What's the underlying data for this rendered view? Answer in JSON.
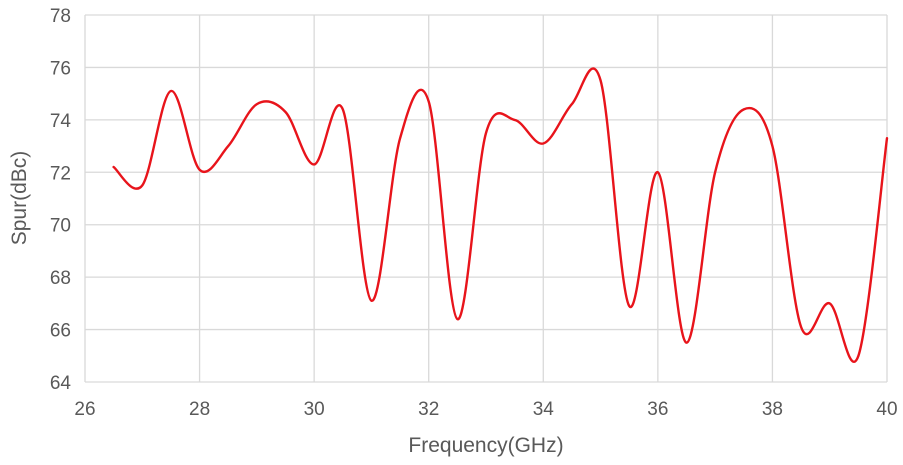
{
  "chart_data": {
    "type": "line",
    "title": "",
    "xlabel": "Frequency(GHz)",
    "ylabel": "Spur(dBc)",
    "xlim": [
      26,
      40
    ],
    "ylim": [
      64,
      78
    ],
    "xticks": [
      26,
      28,
      30,
      32,
      34,
      36,
      38,
      40
    ],
    "yticks": [
      64,
      66,
      68,
      70,
      72,
      74,
      76,
      78
    ],
    "grid": true,
    "legend": "none",
    "series": [
      {
        "color": "#e8141b",
        "x": [
          26.5,
          27,
          27.5,
          28,
          28.5,
          29,
          29.5,
          30,
          30.5,
          31,
          31.5,
          32,
          32.5,
          33,
          33.5,
          34,
          34.5,
          35,
          35.5,
          36,
          36.5,
          37,
          37.5,
          38,
          38.5,
          39,
          39.5,
          40
        ],
        "y": [
          72.2,
          71.5,
          75.1,
          72.1,
          73.0,
          74.6,
          74.3,
          72.3,
          74.4,
          67.1,
          73.3,
          74.7,
          66.4,
          73.5,
          74.0,
          73.1,
          74.6,
          75.5,
          66.9,
          72.0,
          65.5,
          72.0,
          74.4,
          73.0,
          66.1,
          67.0,
          65.0,
          73.3
        ]
      }
    ]
  }
}
